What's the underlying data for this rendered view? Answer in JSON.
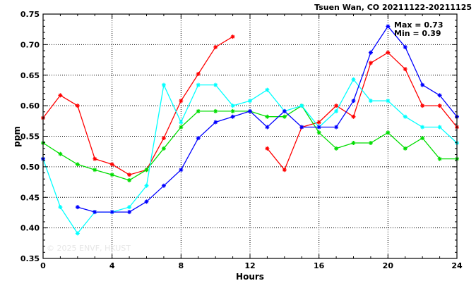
{
  "chart_data": {
    "type": "line",
    "title": "Tsuen Wan, CO 20211122-20211125",
    "xlabel": "Hours",
    "ylabel": "ppm",
    "xlim": [
      0,
      24
    ],
    "ylim": [
      0.35,
      0.75
    ],
    "xticks": [
      "0",
      "4",
      "8",
      "12",
      "16",
      "20",
      "24"
    ],
    "yticks": [
      "0.35",
      "0.40",
      "0.45",
      "0.50",
      "0.55",
      "0.60",
      "0.65",
      "0.70",
      "0.75"
    ],
    "grid": true,
    "x": [
      0,
      1,
      2,
      3,
      4,
      5,
      6,
      7,
      8,
      9,
      10,
      11,
      12,
      13,
      14,
      15,
      16,
      17,
      18,
      19,
      20,
      21,
      22,
      23,
      24
    ],
    "series": [
      {
        "color": "#ff0000",
        "values": [
          0.58,
          0.617,
          0.6,
          0.513,
          0.504,
          0.487,
          0.495,
          0.547,
          0.608,
          0.652,
          0.696,
          0.713,
          null,
          0.53,
          0.495,
          0.565,
          0.573,
          0.6,
          0.582,
          0.67,
          0.687,
          0.66,
          0.6,
          0.6,
          0.565
        ]
      },
      {
        "color": "#00dd00",
        "values": [
          0.539,
          0.521,
          0.504,
          0.495,
          0.487,
          0.478,
          0.495,
          0.53,
          0.565,
          0.591,
          0.591,
          0.591,
          0.591,
          0.582,
          0.582,
          0.6,
          0.556,
          0.53,
          0.539,
          0.539,
          0.556,
          0.53,
          0.547,
          0.513,
          0.513
        ]
      },
      {
        "color": "#00ffff",
        "values": [
          0.513,
          0.434,
          0.391,
          0.426,
          0.426,
          0.434,
          0.469,
          0.634,
          0.573,
          0.634,
          0.634,
          0.6,
          0.608,
          0.626,
          0.591,
          0.6,
          0.565,
          0.591,
          0.643,
          0.608,
          0.608,
          0.582,
          0.565,
          0.565,
          0.539
        ]
      },
      {
        "color": "#0000ff",
        "values": [
          0.513,
          null,
          0.434,
          0.426,
          0.426,
          0.426,
          0.443,
          0.469,
          0.495,
          0.547,
          0.573,
          0.582,
          0.591,
          0.565,
          0.591,
          0.565,
          0.565,
          0.565,
          0.608,
          0.687,
          0.73,
          0.696,
          0.634,
          0.617,
          0.582
        ]
      }
    ],
    "annotations": {
      "max": "Max = 0.73",
      "min": "Min = 0.39"
    }
  },
  "watermark": "© 2025  ENVF, HKUST"
}
